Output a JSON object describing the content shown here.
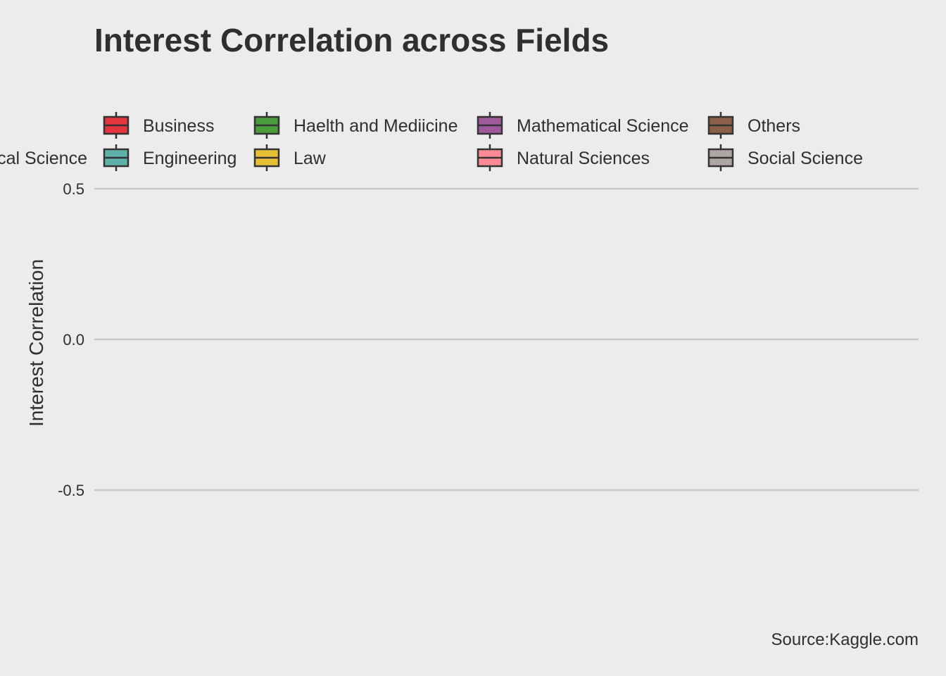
{
  "chart_data": {
    "type": "box",
    "title": "Interest Correlation across Fields",
    "xlabel": "",
    "ylabel": "Interest Correlation",
    "caption": "Source:Kaggle.com",
    "ylim": [
      -0.85,
      0.5
    ],
    "y_ticks": [
      0.5,
      0.0,
      -0.5
    ],
    "y_tick_labels": [
      "0.5",
      "0.0",
      "-0.5"
    ],
    "grid": "horizontal major",
    "legend_position": "top",
    "legend": [
      {
        "label": "Business",
        "color": "#e4353f"
      },
      {
        "label": "Haelth and Mediicine",
        "color": "#4a9b3a"
      },
      {
        "label": "Mathematical Science",
        "color": "#a05a9c"
      },
      {
        "label": "Others",
        "color": "#8c6048"
      },
      {
        "label": "cal Science",
        "color": ""
      },
      {
        "label": "Engineering",
        "color": "#60b0ac"
      },
      {
        "label": "Law",
        "color": "#e6c036"
      },
      {
        "label": "Natural Sciences",
        "color": "#ff8a96"
      },
      {
        "label": "Social Science",
        "color": "#ada6a2"
      }
    ],
    "series": []
  },
  "colors": {
    "background": "#ececec",
    "grid": "#c8c8c8",
    "text": "#2f2f2f"
  }
}
